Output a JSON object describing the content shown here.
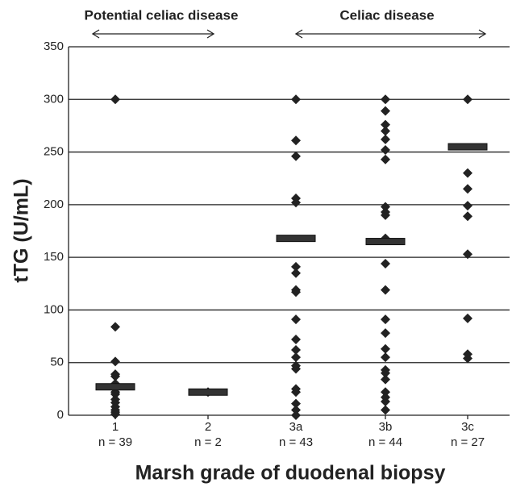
{
  "chart_data": {
    "type": "strip",
    "annotations": [
      "Potential celiac disease",
      "Celiac disease"
    ],
    "ylabel": "tTG (U/mL)",
    "xlabel": "Marsh grade of duodenal biopsy",
    "categories": [
      "1",
      "2",
      "3a",
      "3b",
      "3c"
    ],
    "category_counts": [
      "n = 39",
      "n = 2",
      "n = 43",
      "n = 44",
      "n = 27"
    ],
    "points": [
      [
        300,
        84,
        51,
        39,
        37,
        30,
        22,
        20,
        15,
        12,
        8,
        5,
        3,
        1
      ],
      [
        22
      ],
      [
        300,
        261,
        246,
        206,
        202,
        141,
        135,
        119,
        117,
        91,
        72,
        62,
        55,
        47,
        44,
        25,
        22,
        11,
        5,
        0
      ],
      [
        300,
        289,
        276,
        270,
        262,
        252,
        243,
        198,
        193,
        190,
        168,
        144,
        119,
        91,
        78,
        63,
        55,
        43,
        40,
        34,
        22,
        17,
        13,
        5
      ],
      [
        300,
        230,
        215,
        199,
        189,
        153,
        92,
        58,
        54
      ]
    ],
    "medians": [
      27,
      22,
      168,
      165,
      255
    ],
    "color": "#222222",
    "ylim": [
      0,
      350
    ],
    "yticks": [
      0,
      50,
      100,
      150,
      200,
      250,
      300,
      350
    ],
    "grid": true
  }
}
